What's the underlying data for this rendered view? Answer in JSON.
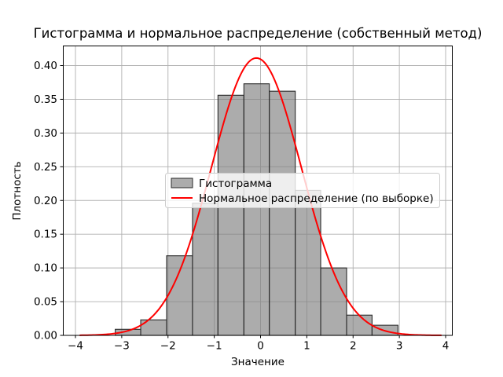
{
  "chart_data": {
    "type": "bar",
    "subtype": "histogram-with-density-line",
    "title": "Гистограмма и нормальное распределение (собственный метод)",
    "xlabel": "Значение",
    "ylabel": "Плотность",
    "xlim": [
      -4.272,
      4.153
    ],
    "ylim": [
      0,
      0.4297
    ],
    "xticks": [
      -4,
      -3,
      -2,
      -1,
      0,
      1,
      2,
      3,
      4
    ],
    "yticks": [
      0.0,
      0.05,
      0.1,
      0.15,
      0.2,
      0.25,
      0.3,
      0.35,
      0.4
    ],
    "grid": true,
    "grid_color": "#b0b0b0",
    "background_color": "#ffffff",
    "legend_position": "center",
    "series": [
      {
        "name": "Гистограмма",
        "type": "histogram",
        "bin_edges": [
          -3.14,
          -2.59,
          -2.03,
          -1.47,
          -0.92,
          -0.36,
          0.19,
          0.75,
          1.3,
          1.86,
          2.41,
          2.97
        ],
        "densities": [
          0.009,
          0.023,
          0.118,
          0.196,
          0.356,
          0.373,
          0.362,
          0.215,
          0.1,
          0.03,
          0.015
        ],
        "fill_color": "#808080",
        "fill_opacity": 0.65,
        "edge_color": "#2a2a2a"
      },
      {
        "name": "Нормальное распределение (по выборке)",
        "type": "line",
        "color": "#ff0000",
        "mu": -0.09,
        "sigma": 0.97,
        "peak_density": 0.411,
        "x_range": [
          -3.9,
          3.9
        ]
      }
    ]
  }
}
